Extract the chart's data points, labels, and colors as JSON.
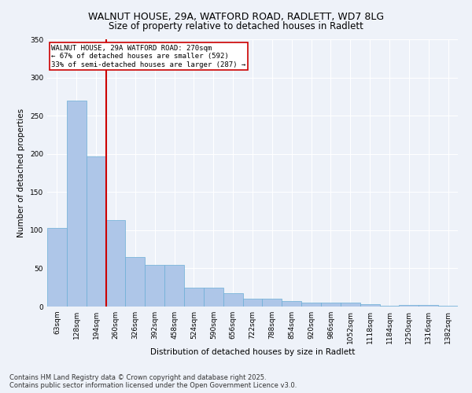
{
  "title1": "WALNUT HOUSE, 29A, WATFORD ROAD, RADLETT, WD7 8LG",
  "title2": "Size of property relative to detached houses in Radlett",
  "xlabel": "Distribution of detached houses by size in Radlett",
  "ylabel": "Number of detached properties",
  "categories": [
    "63sqm",
    "128sqm",
    "194sqm",
    "260sqm",
    "326sqm",
    "392sqm",
    "458sqm",
    "524sqm",
    "590sqm",
    "656sqm",
    "722sqm",
    "788sqm",
    "854sqm",
    "920sqm",
    "986sqm",
    "1052sqm",
    "1118sqm",
    "1184sqm",
    "1250sqm",
    "1316sqm",
    "1382sqm"
  ],
  "values": [
    103,
    270,
    197,
    113,
    65,
    55,
    55,
    25,
    25,
    18,
    10,
    10,
    7,
    5,
    5,
    5,
    3,
    1,
    2,
    2,
    1
  ],
  "bar_color": "#aec6e8",
  "bar_edge_color": "#6baed6",
  "bar_edge_width": 0.5,
  "vline_x_index": 3,
  "vline_color": "#cc0000",
  "annotation_text": "WALNUT HOUSE, 29A WATFORD ROAD: 270sqm\n← 67% of detached houses are smaller (592)\n33% of semi-detached houses are larger (287) →",
  "annotation_fontsize": 6.5,
  "annotation_box_color": "#ffffff",
  "annotation_box_edgecolor": "#cc0000",
  "ylim": [
    0,
    350
  ],
  "yticks": [
    0,
    50,
    100,
    150,
    200,
    250,
    300,
    350
  ],
  "background_color": "#eef2f9",
  "grid_color": "#ffffff",
  "footer_text": "Contains HM Land Registry data © Crown copyright and database right 2025.\nContains public sector information licensed under the Open Government Licence v3.0.",
  "footer_fontsize": 6.0,
  "title1_fontsize": 9.0,
  "title2_fontsize": 8.5,
  "xlabel_fontsize": 7.5,
  "ylabel_fontsize": 7.5,
  "tick_fontsize": 6.5
}
